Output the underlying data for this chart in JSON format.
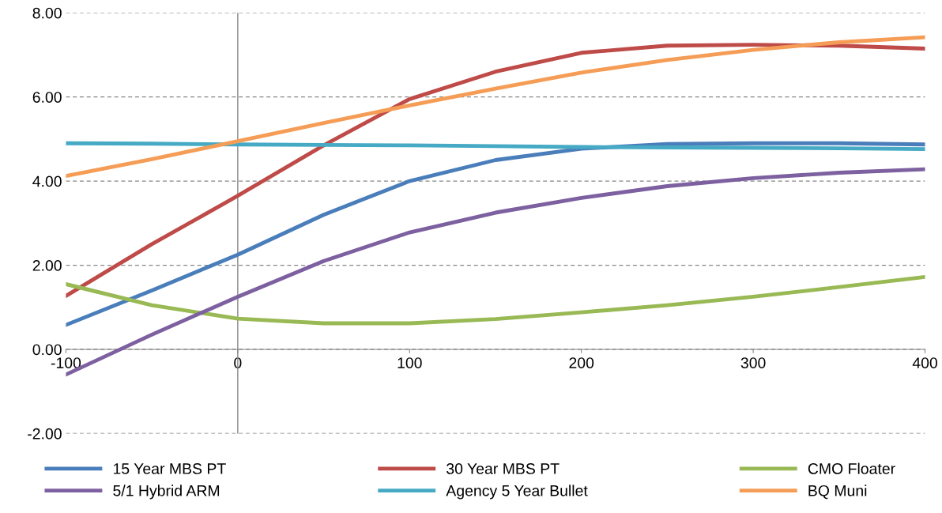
{
  "chart_data": {
    "type": "line",
    "x": [
      -100,
      -50,
      0,
      50,
      100,
      150,
      200,
      250,
      300,
      350,
      400
    ],
    "series": [
      {
        "name": "15 Year MBS PT",
        "color": "#4a7ebb",
        "values": [
          0.58,
          1.4,
          2.25,
          3.2,
          4.0,
          4.5,
          4.77,
          4.88,
          4.9,
          4.9,
          4.87
        ]
      },
      {
        "name": "30 Year MBS PT",
        "color": "#be4b48",
        "values": [
          1.27,
          2.5,
          3.65,
          4.85,
          5.95,
          6.6,
          7.05,
          7.22,
          7.24,
          7.22,
          7.15
        ]
      },
      {
        "name": "CMO Floater",
        "color": "#98b954",
        "values": [
          1.55,
          1.05,
          0.73,
          0.62,
          0.62,
          0.72,
          0.88,
          1.05,
          1.25,
          1.48,
          1.72
        ]
      },
      {
        "name": "5/1 Hybrid ARM",
        "color": "#7d60a0",
        "values": [
          -0.6,
          0.35,
          1.25,
          2.1,
          2.78,
          3.25,
          3.6,
          3.88,
          4.07,
          4.2,
          4.28
        ]
      },
      {
        "name": "Agency 5 Year Bullet",
        "color": "#46aac5",
        "values": [
          4.9,
          4.89,
          4.87,
          4.86,
          4.85,
          4.83,
          4.81,
          4.8,
          4.79,
          4.78,
          4.76
        ]
      },
      {
        "name": "BQ Muni",
        "color": "#f59d56",
        "values": [
          4.12,
          4.52,
          4.95,
          5.38,
          5.8,
          6.2,
          6.58,
          6.88,
          7.12,
          7.3,
          7.42
        ]
      }
    ],
    "xlim": [
      -100,
      400
    ],
    "xticks": [
      -100,
      0,
      100,
      200,
      300,
      400
    ],
    "ylim": [
      -2,
      8
    ],
    "yticks": [
      {
        "value": -2,
        "label": "-2.00"
      },
      {
        "value": 0,
        "label": "0.00"
      },
      {
        "value": 2,
        "label": "2.00"
      },
      {
        "value": 4,
        "label": "4.00"
      },
      {
        "value": 6,
        "label": "6.00"
      },
      {
        "value": 8,
        "label": "8.00"
      }
    ],
    "ref_lines": [
      {
        "axis": "x",
        "value": 0,
        "color": "#868686"
      }
    ],
    "grid": "y",
    "legend": "bottom",
    "marker": "none",
    "line_style": "solid"
  }
}
